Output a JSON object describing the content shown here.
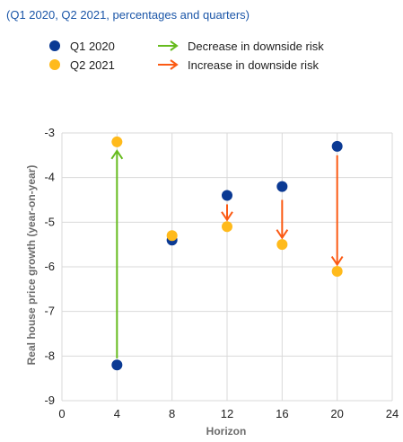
{
  "subtitle": "(Q1 2020, Q2 2021, percentages and quarters)",
  "legend": [
    {
      "label": "Q1 2020",
      "marker": "dot",
      "color": "#0b3a94"
    },
    {
      "label": "Q2 2021",
      "marker": "dot",
      "color": "#ffba1b"
    },
    {
      "label": "Decrease in downside risk",
      "marker": "arrow",
      "color": "#66bb1e"
    },
    {
      "label": "Increase in downside risk",
      "marker": "arrow",
      "color": "#fb5a14"
    }
  ],
  "chart_data": {
    "type": "scatter",
    "xlabel": "Horizon",
    "ylabel": "Real house price growth (year-on-year)",
    "xlim": [
      0,
      24
    ],
    "ylim": [
      -9,
      -3
    ],
    "xticks": [
      0,
      4,
      8,
      12,
      16,
      20,
      24
    ],
    "yticks": [
      -3,
      -4,
      -5,
      -6,
      -7,
      -8,
      -9
    ],
    "grid": true,
    "legend_position": "top",
    "series": [
      {
        "name": "Q1 2020",
        "color": "#0b3a94",
        "x": [
          4,
          8,
          12,
          16,
          20
        ],
        "y": [
          -8.2,
          -5.4,
          -4.4,
          -4.2,
          -3.3
        ]
      },
      {
        "name": "Q2 2021",
        "color": "#ffba1b",
        "x": [
          4,
          8,
          12,
          16,
          20
        ],
        "y": [
          -3.2,
          -5.3,
          -5.1,
          -5.5,
          -6.1
        ]
      }
    ],
    "arrows": [
      {
        "x": 4,
        "from": -8.05,
        "to": -3.4,
        "kind": "decrease",
        "color": "#66bb1e"
      },
      {
        "x": 12,
        "from": -4.6,
        "to": -4.95,
        "kind": "increase",
        "color": "#fb5a14"
      },
      {
        "x": 16,
        "from": -4.5,
        "to": -5.35,
        "kind": "increase",
        "color": "#fb5a14"
      },
      {
        "x": 20,
        "from": -3.5,
        "to": -5.95,
        "kind": "increase",
        "color": "#fb5a14"
      }
    ]
  }
}
